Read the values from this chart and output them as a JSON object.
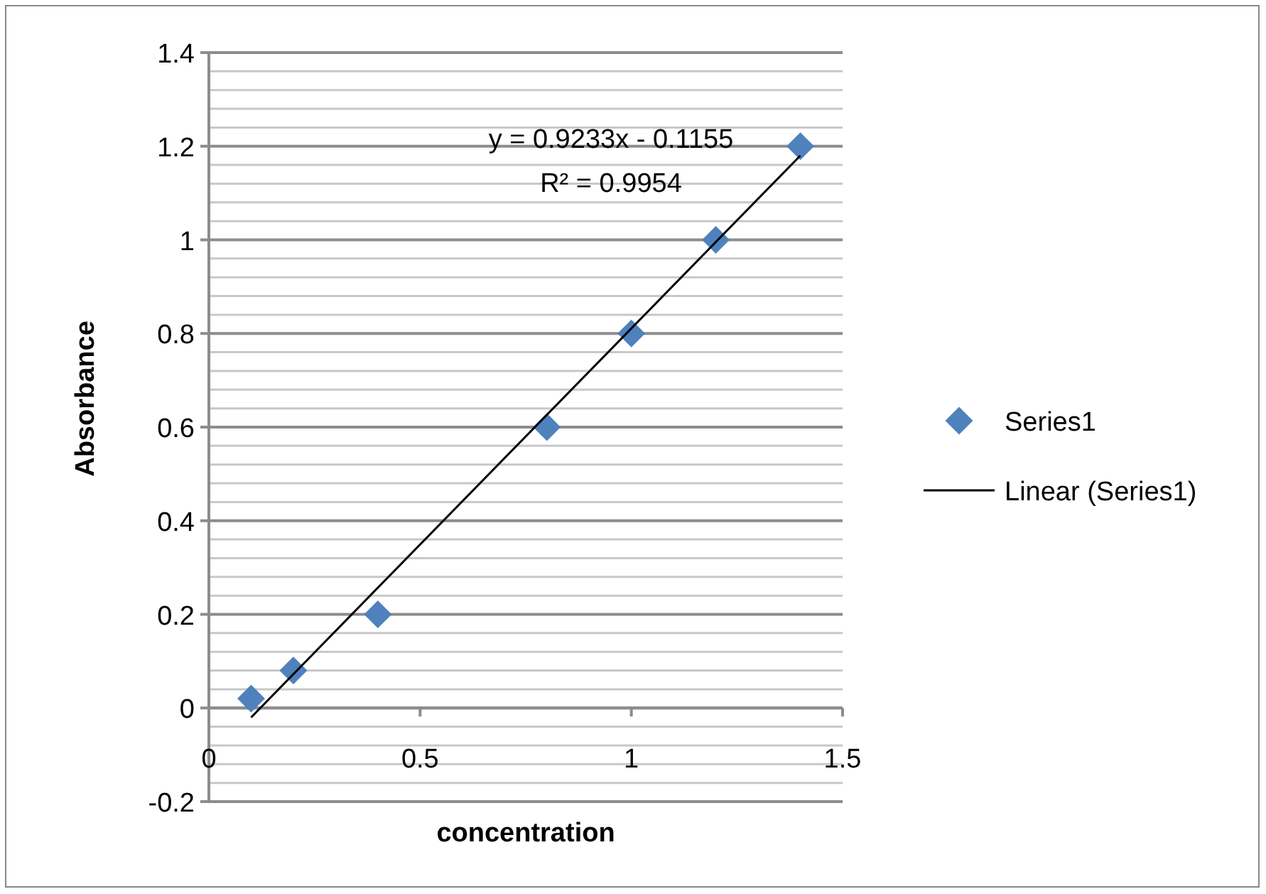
{
  "chart_data": {
    "type": "scatter",
    "xlabel": "concentration",
    "ylabel": "Absorbance",
    "annotations": [
      "y = 0.9233x - 0.1155",
      "R² = 0.9954"
    ],
    "series": [
      {
        "name": "Series1",
        "color": "#4f81bd",
        "marker": "diamond",
        "x": [
          0.1,
          0.2,
          0.4,
          0.8,
          1,
          1.2,
          1.4
        ],
        "values": [
          0.02,
          0.08,
          0.2,
          0.6,
          0.8,
          1,
          1.2
        ]
      },
      {
        "name": "Linear (Series1)",
        "type": "line",
        "color": "#000000",
        "marker": "none",
        "line_style": "solid",
        "x": [
          0.1,
          1.4
        ],
        "values": [
          -0.02,
          1.18
        ]
      }
    ],
    "xlim": [
      0,
      1.5
    ],
    "xticks": [
      0,
      0.5,
      1,
      1.5
    ],
    "ylim": [
      -0.2,
      1.4
    ],
    "yticks": [
      -0.2,
      {
        "value": -0.16,
        "label": null
      },
      {
        "value": -0.12,
        "label": null
      },
      {
        "value": -0.08,
        "label": null
      },
      {
        "value": -0.04,
        "label": null
      },
      0,
      {
        "value": 0.04,
        "label": null
      },
      {
        "value": 0.08,
        "label": null
      },
      {
        "value": 0.12,
        "label": null
      },
      {
        "value": 0.16,
        "label": null
      },
      0.2,
      {
        "value": 0.24,
        "label": null
      },
      {
        "value": 0.28,
        "label": null
      },
      {
        "value": 0.32,
        "label": null
      },
      {
        "value": 0.36,
        "label": null
      },
      0.4,
      {
        "value": 0.44,
        "label": null
      },
      {
        "value": 0.48,
        "label": null
      },
      {
        "value": 0.52,
        "label": null
      },
      {
        "value": 0.56,
        "label": null
      },
      0.6,
      {
        "value": 0.64,
        "label": null
      },
      {
        "value": 0.68,
        "label": null
      },
      {
        "value": 0.72,
        "label": null
      },
      {
        "value": 0.76,
        "label": null
      },
      0.8,
      {
        "value": 0.84,
        "label": null
      },
      {
        "value": 0.88,
        "label": null
      },
      {
        "value": 0.92,
        "label": null
      },
      {
        "value": 0.96,
        "label": null
      },
      1,
      {
        "value": 1.04,
        "label": null
      },
      {
        "value": 1.08,
        "label": null
      },
      {
        "value": 1.12,
        "label": null
      },
      {
        "value": 1.16,
        "label": null
      },
      1.2,
      {
        "value": 1.24,
        "label": null
      },
      {
        "value": 1.28,
        "label": null
      },
      {
        "value": 1.32,
        "label": null
      },
      {
        "value": 1.36,
        "label": null
      },
      1.4
    ],
    "grid": "y",
    "legend": "right"
  }
}
